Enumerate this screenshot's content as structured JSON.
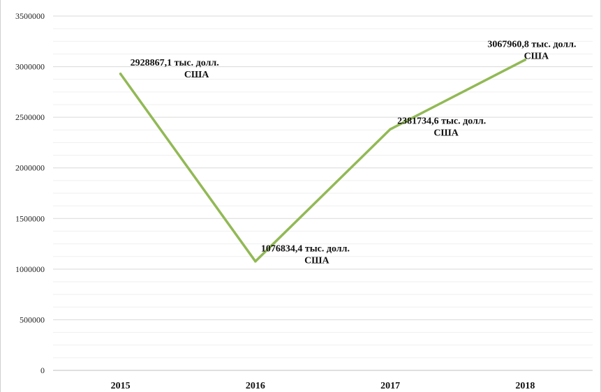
{
  "chart_data": {
    "type": "line",
    "categories": [
      "2015",
      "2016",
      "2017",
      "2018"
    ],
    "series": [
      {
        "values": [
          2928867.1,
          1076834.4,
          2381734.6,
          3067960.8
        ],
        "color": "#92b955",
        "labels": [
          [
            "2928867,1 тыс. долл.",
            "США"
          ],
          [
            "1076834,4 тыс. долл.",
            "США"
          ],
          [
            "2381734,6 тыс. долл.",
            "США"
          ],
          [
            "3067960,8 тыс. долл.",
            "США"
          ]
        ]
      }
    ],
    "yticks": [
      "0",
      "500000",
      "1000000",
      "1500000",
      "2000000",
      "2500000",
      "3000000",
      "3500000"
    ],
    "ylim": [
      0,
      3500000
    ],
    "grid": true,
    "legend": "none"
  }
}
